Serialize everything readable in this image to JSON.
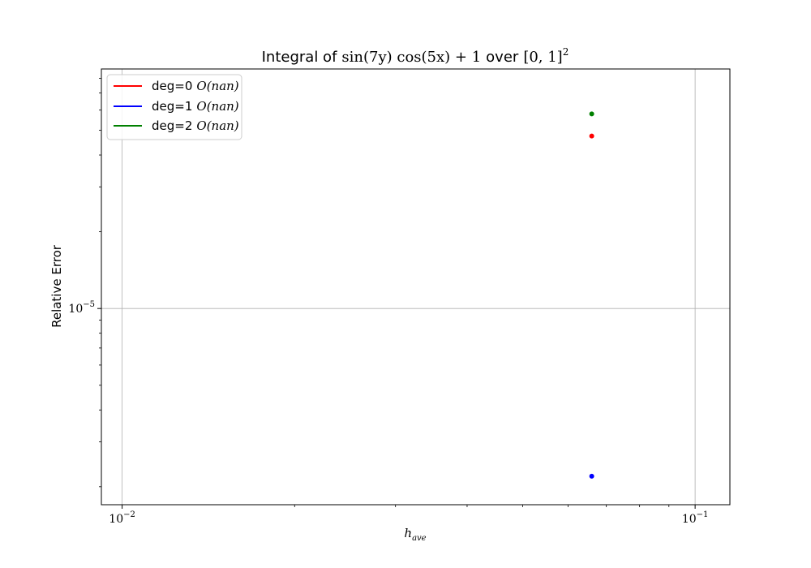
{
  "chart_data": {
    "type": "scatter",
    "title": {
      "prefix": "Integral of",
      "expr": "sin(7y) cos(5x) + 1",
      "middle": "over",
      "domain": "[0, 1]",
      "power": "2"
    },
    "xlabel": {
      "base": "h",
      "sub": "ave"
    },
    "ylabel": "Relative Error",
    "xscale": "log",
    "yscale": "log",
    "xlim": [
      0.0092,
      0.115
    ],
    "ylim": [
      1.7e-06,
      8.7e-05
    ],
    "grid": true,
    "x_major_ticks": [
      {
        "value": 0.01,
        "base": "10",
        "exp": "−2"
      },
      {
        "value": 0.1,
        "base": "10",
        "exp": "−1"
      }
    ],
    "y_major_ticks": [
      {
        "value": 1e-05,
        "base": "10",
        "exp": "−5"
      }
    ],
    "legend": {
      "placement": "upper-left",
      "entries": [
        {
          "label": "deg=0",
          "order": "O(nan)",
          "color": "#ff0000"
        },
        {
          "label": "deg=1",
          "order": "O(nan)",
          "color": "#0000ff"
        },
        {
          "label": "deg=2",
          "order": "O(nan)",
          "color": "#008000"
        }
      ]
    },
    "series": [
      {
        "color": "#ff0000",
        "points": [
          {
            "x": 0.066,
            "y": 4.75e-05
          }
        ]
      },
      {
        "color": "#0000ff",
        "points": [
          {
            "x": 0.066,
            "y": 2.2e-06
          }
        ]
      },
      {
        "color": "#008000",
        "points": [
          {
            "x": 0.066,
            "y": 5.8e-05
          }
        ]
      }
    ]
  }
}
